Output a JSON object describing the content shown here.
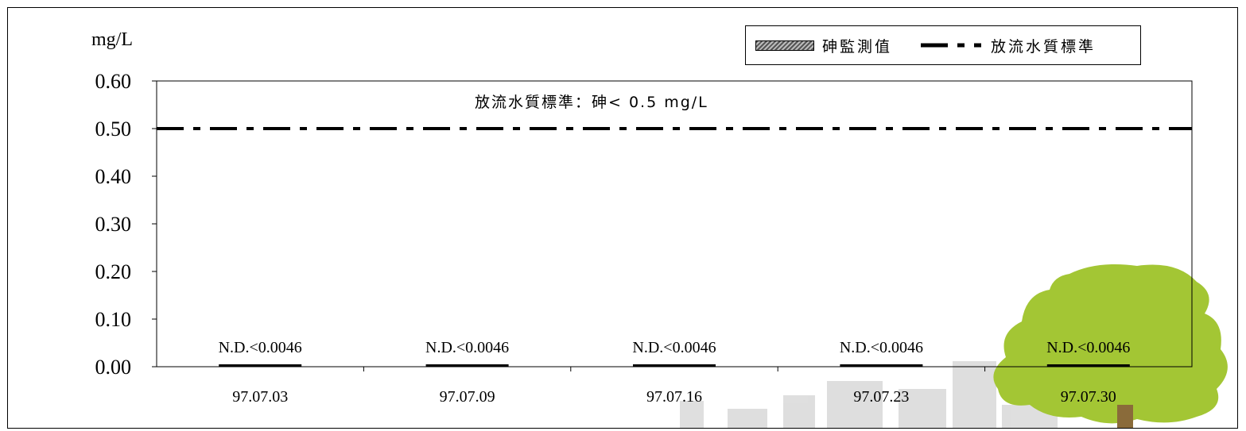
{
  "chart_data": {
    "type": "bar",
    "ylabel": "mg/L",
    "categories": [
      "97.07.03",
      "97.07.09",
      "97.07.16",
      "97.07.23",
      "97.07.30"
    ],
    "series": [
      {
        "name": "砷監測值",
        "values": [
          0,
          0,
          0,
          0,
          0
        ],
        "labels": [
          "N.D.<0.0046",
          "N.D.<0.0046",
          "N.D.<0.0046",
          "N.D.<0.0046",
          "N.D.<0.0046"
        ]
      }
    ],
    "reference_lines": [
      {
        "name": "放流水質標準",
        "value": 0.5,
        "style": "dash-dot",
        "annotation": "放流水質標準：砷< 0.5 mg/L"
      }
    ],
    "ylim": [
      0,
      0.6
    ],
    "yticks": [
      "0.00",
      "0.10",
      "0.20",
      "0.30",
      "0.40",
      "0.50",
      "0.60"
    ],
    "grid": false,
    "legend_position": "top-right"
  },
  "colors": {
    "bar": "#000000",
    "reference_line": "#000000",
    "tree": "#a3c634",
    "building": "#d9d9d9"
  }
}
